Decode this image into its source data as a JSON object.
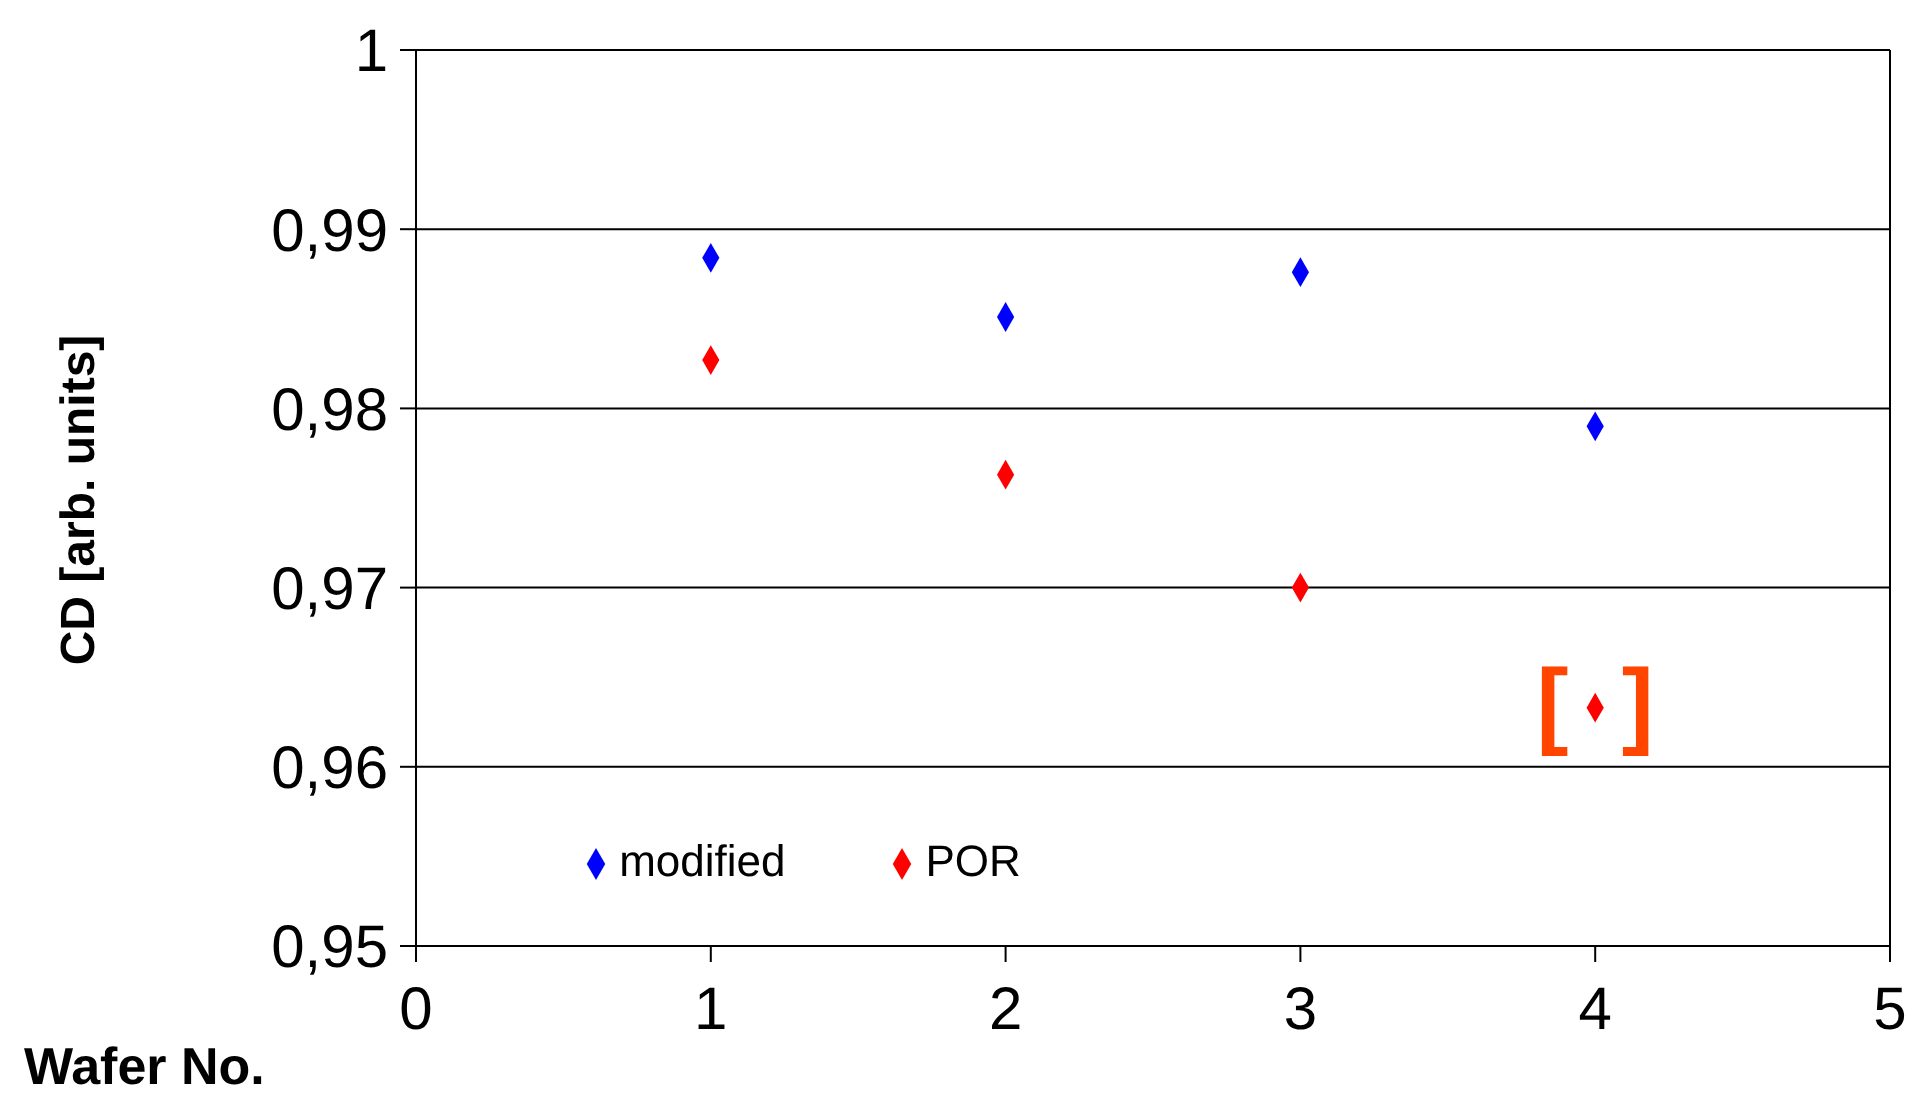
{
  "chart_data": {
    "type": "scatter",
    "xlabel": "Wafer No.",
    "ylabel": "CD [arb. units]",
    "x": [
      1,
      2,
      3,
      4
    ],
    "series": [
      {
        "name": "modified",
        "color": "#0000ff",
        "values": [
          0.9884,
          0.9851,
          0.9876,
          0.979
        ]
      },
      {
        "name": "POR",
        "color": "#ff0000",
        "values": [
          0.9827,
          0.9763,
          0.97,
          0.9633
        ]
      }
    ],
    "xlim": [
      0,
      5
    ],
    "xticks": [
      0,
      1,
      2,
      3,
      4,
      5
    ],
    "ylim": [
      0.95,
      1
    ],
    "yticks": [
      {
        "value": 0.95,
        "label": "0,95"
      },
      {
        "value": 0.96,
        "label": "0,96"
      },
      {
        "value": 0.97,
        "label": "0,97"
      },
      {
        "value": 0.98,
        "label": "0,98"
      },
      {
        "value": 0.99,
        "label": "0,99"
      },
      1
    ],
    "annotations": [
      {
        "text": "[  ]",
        "x": 4,
        "y": 0.9633
      }
    ],
    "grid": "y",
    "legend": "bottom left",
    "marker": "diamond"
  }
}
